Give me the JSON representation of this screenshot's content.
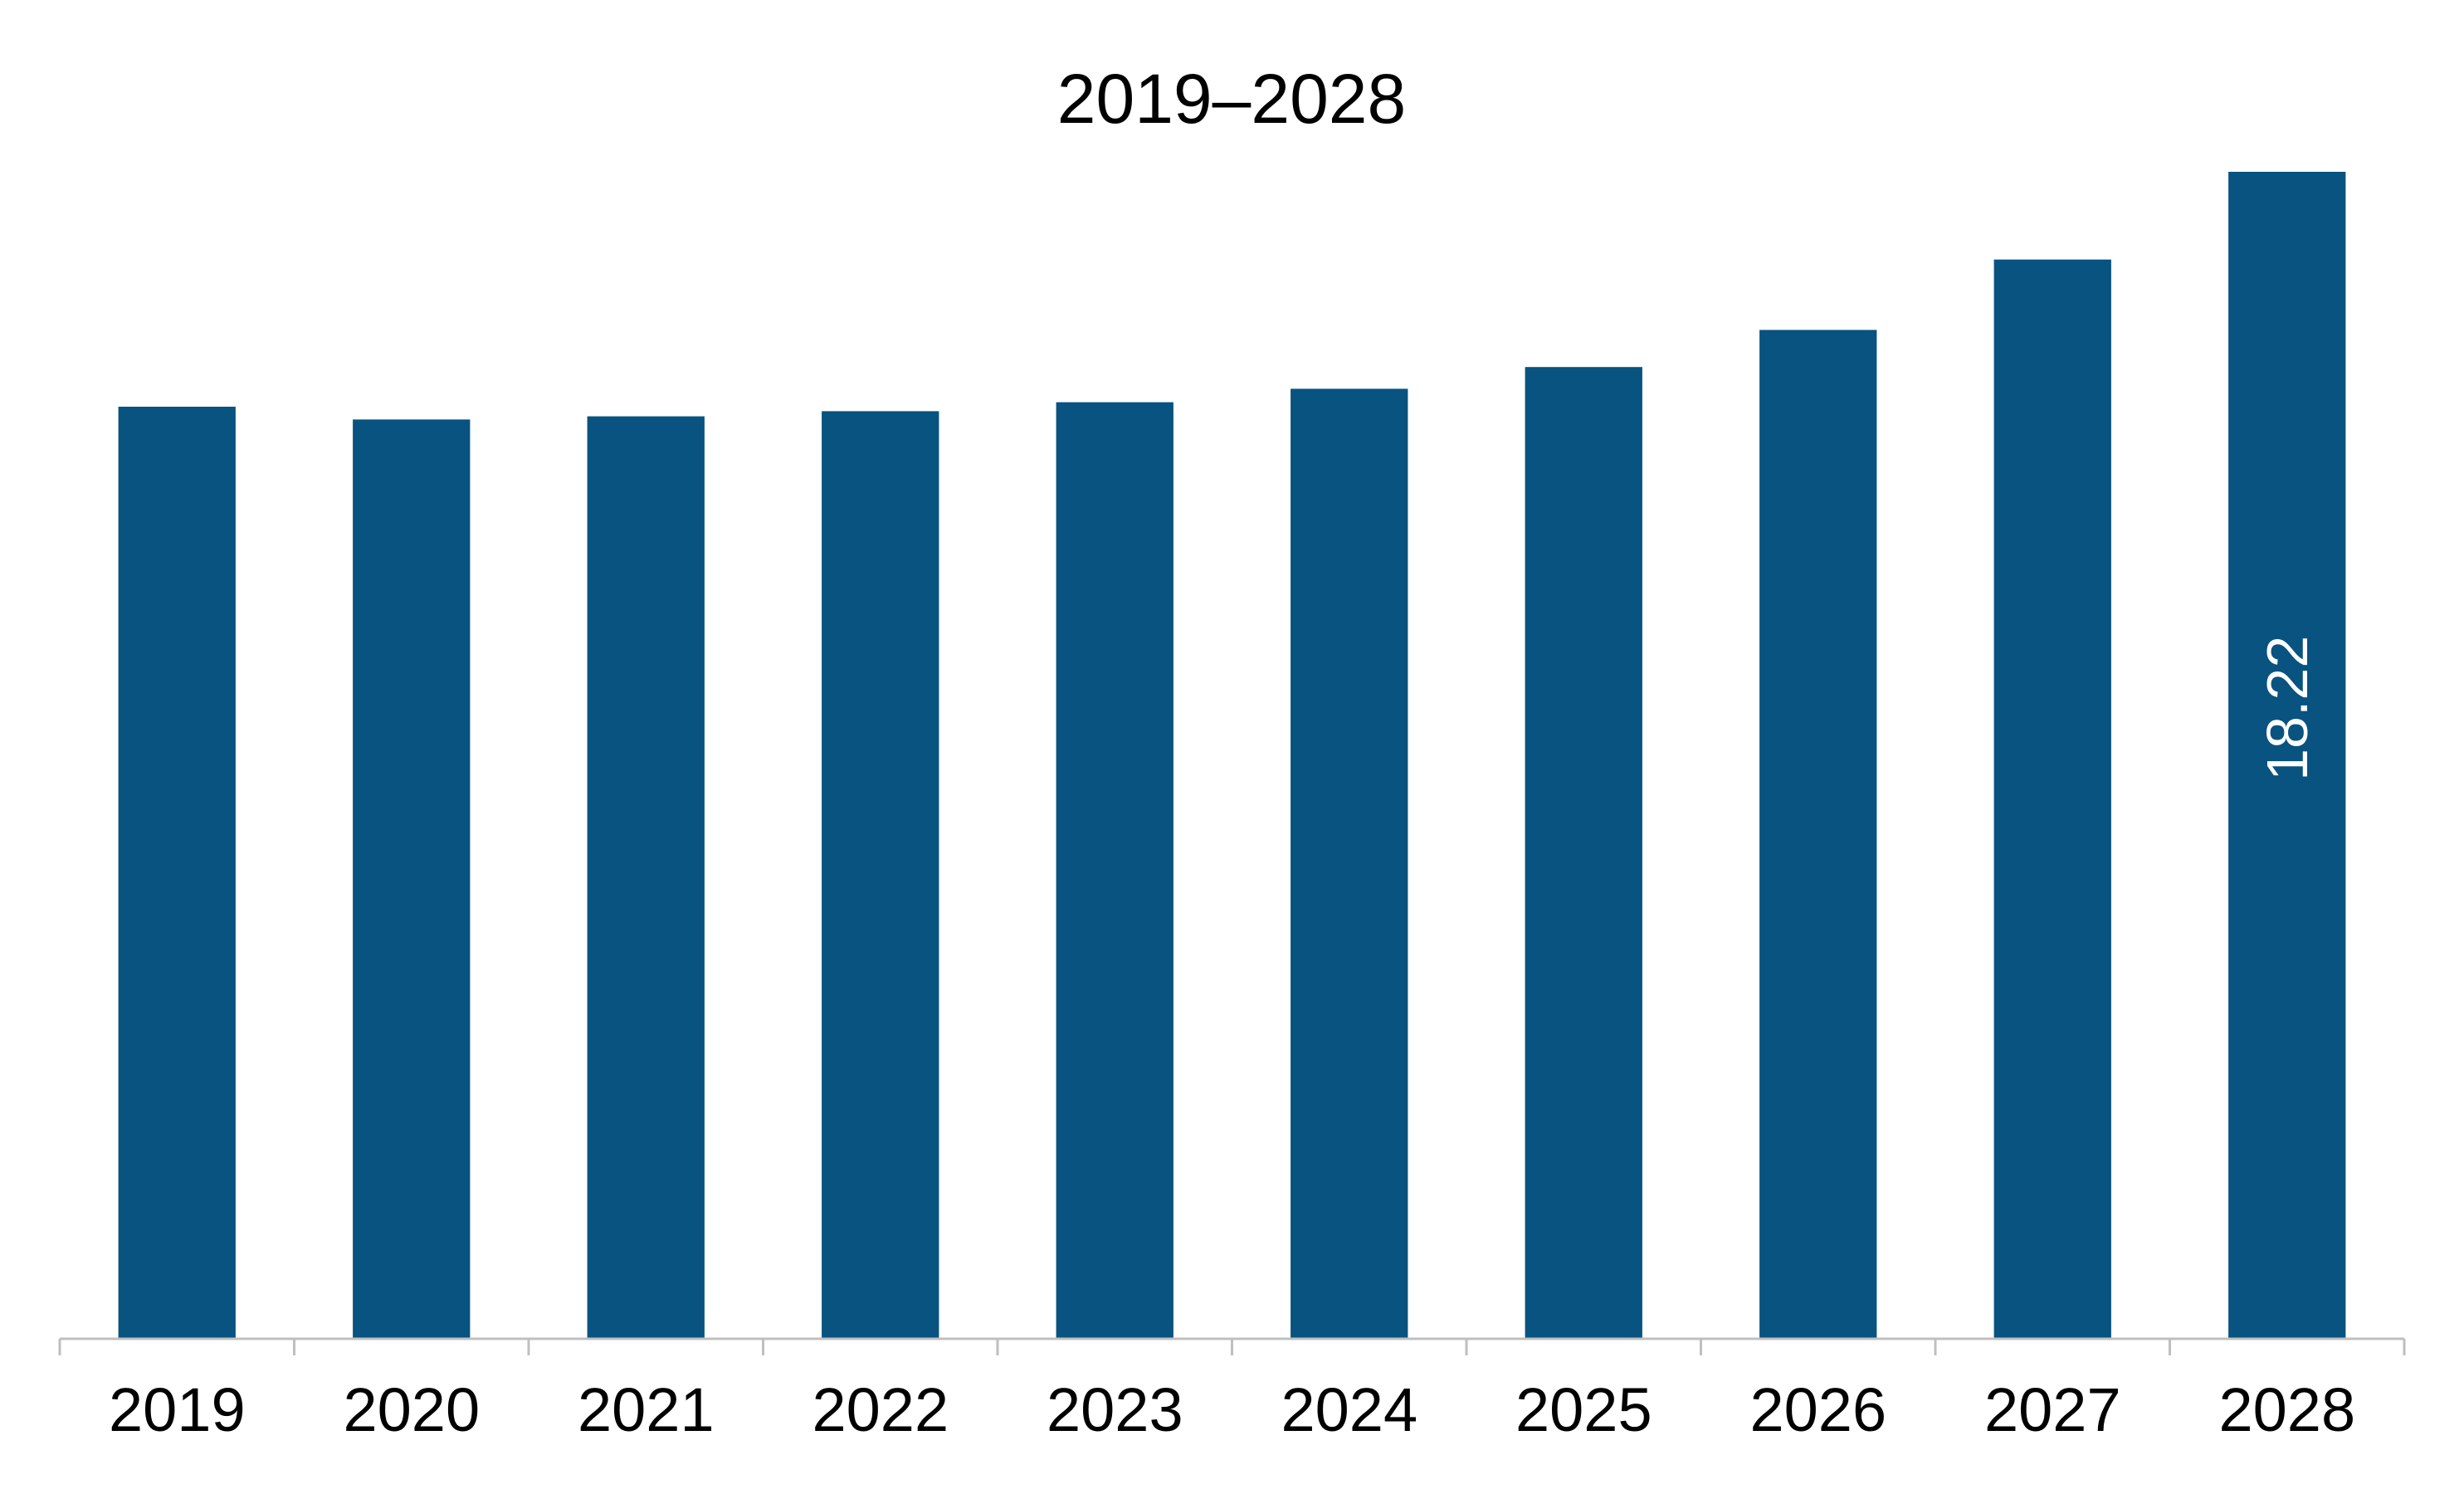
{
  "chart_data": {
    "type": "bar",
    "title": "2019–2028",
    "xlabel": "",
    "ylabel": "",
    "categories": [
      "2019",
      "2020",
      "2021",
      "2022",
      "2023",
      "2024",
      "2025",
      "2026",
      "2027",
      "2028"
    ],
    "values": [
      14.55,
      14.35,
      14.4,
      14.48,
      14.62,
      14.83,
      15.17,
      15.75,
      16.85,
      18.22
    ],
    "data_labels": [
      {
        "category": "2028",
        "text": "18.22"
      }
    ],
    "ylim": [
      0,
      18.7
    ],
    "grid": false,
    "legend": "none",
    "colors": {
      "bar": "#08537F",
      "axis": "#bfbfbf",
      "text": "#000000",
      "data_label": "#ffffff"
    }
  }
}
